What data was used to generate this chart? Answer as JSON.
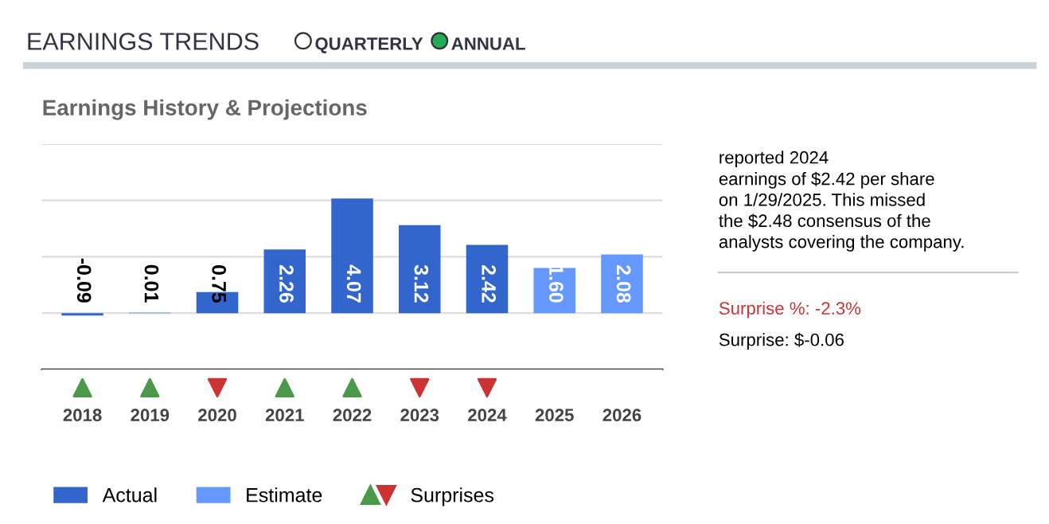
{
  "chart_data": {
    "type": "bar",
    "title": "EARNINGS TRENDS",
    "subtitle": "Earnings History & Projections",
    "categories": [
      "2018",
      "2019",
      "2020",
      "2021",
      "2022",
      "2023",
      "2024",
      "2025",
      "2026"
    ],
    "series": [
      {
        "name": "Actual",
        "color": "#3366cc",
        "values": [
          -0.09,
          0.01,
          0.75,
          2.26,
          4.07,
          3.12,
          2.42,
          null,
          null
        ],
        "value_labels": [
          "-0.09",
          "0.01",
          "0.75",
          "2.26",
          "4.07",
          "3.12",
          "2.42",
          null,
          null
        ]
      },
      {
        "name": "Estimate",
        "color": "#6699ff",
        "values": [
          null,
          null,
          null,
          null,
          null,
          null,
          null,
          1.6,
          2.08
        ],
        "value_labels": [
          null,
          null,
          null,
          null,
          null,
          null,
          null,
          "1.60",
          "2.08"
        ]
      },
      {
        "name": "Surprises",
        "type": "scatter",
        "values": [
          null,
          null,
          null,
          null,
          null,
          null,
          null,
          null,
          null
        ],
        "colors": [
          "#4a9a4a",
          "#4a9a4a",
          "#cc3333",
          "#4a9a4a",
          "#4a9a4a",
          "#cc3333",
          "#cc3333",
          null,
          null
        ]
      }
    ],
    "ylim": [
      -2,
      6
    ],
    "yticks": [
      {
        "value": 0,
        "label": null
      },
      {
        "value": 2,
        "label": null
      },
      {
        "value": 4,
        "label": null
      },
      {
        "value": 6,
        "label": null
      }
    ],
    "tick_labels": "x",
    "grid": "y",
    "legend": "bottom left",
    "annotations": [
      "QUARTERLY",
      "ANNUAL",
      "reported 2024\nearnings of $2.42 per share\non 1/29/2025. This missed\nthe $2.48 consensus of the\nanalysts covering the company.",
      "Surprise %: -2.3%",
      "Surprise: $-0.06"
    ]
  }
}
